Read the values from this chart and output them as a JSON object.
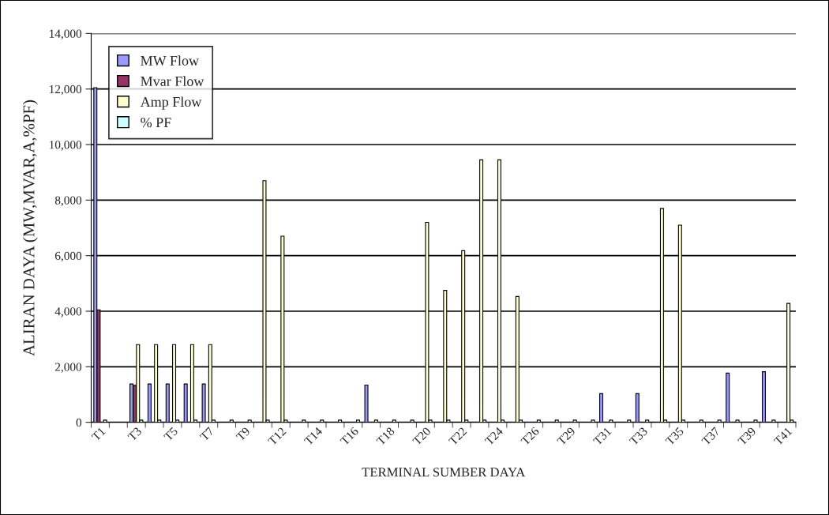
{
  "chart_data": {
    "type": "bar",
    "xlabel": "TERMINAL SUMBER DAYA",
    "ylabel": "ALIRAN DAYA (MW,MVAR,A,%PF)",
    "categories": [
      "T1",
      null,
      "T3",
      null,
      "T5",
      null,
      "T7",
      null,
      "T9",
      null,
      "T12",
      null,
      "T14",
      null,
      "T16",
      null,
      "T18",
      null,
      "T20",
      null,
      "T22",
      null,
      "T24",
      null,
      "T26",
      null,
      "T29",
      null,
      "T31",
      null,
      "T33",
      null,
      "T35",
      null,
      "T37",
      null,
      "T39",
      null,
      "T41"
    ],
    "series": [
      {
        "name": "MW Flow",
        "color": "#9999ff",
        "values": [
          12050,
          0,
          1380,
          1380,
          1380,
          1380,
          1380,
          0,
          0,
          0,
          0,
          0,
          0,
          0,
          0,
          1340,
          0,
          0,
          0,
          0,
          0,
          0,
          0,
          0,
          0,
          0,
          0,
          0,
          1030,
          0,
          1030,
          0,
          0,
          0,
          0,
          1770,
          0,
          1820,
          0
        ]
      },
      {
        "name": "Mvar Flow",
        "color": "#993366",
        "values": [
          4050,
          0,
          1330,
          0,
          0,
          0,
          0,
          0,
          0,
          0,
          0,
          0,
          0,
          0,
          0,
          0,
          0,
          0,
          0,
          0,
          0,
          0,
          0,
          0,
          0,
          0,
          0,
          0,
          0,
          0,
          0,
          0,
          0,
          0,
          0,
          0,
          0,
          0,
          0
        ]
      },
      {
        "name": "Amp Flow",
        "color": "#ffffcc",
        "values": [
          0,
          0,
          2800,
          2800,
          2800,
          2800,
          2800,
          0,
          0,
          8700,
          6700,
          0,
          0,
          0,
          0,
          0,
          0,
          0,
          7200,
          4750,
          6180,
          9450,
          9450,
          4530,
          0,
          0,
          0,
          0,
          0,
          0,
          0,
          7700,
          7100,
          0,
          0,
          0,
          0,
          0,
          4280
        ]
      },
      {
        "name": "% PF",
        "color": "#ccffff",
        "values": [
          80,
          null,
          80,
          80,
          80,
          80,
          80,
          80,
          80,
          80,
          80,
          80,
          80,
          80,
          80,
          80,
          80,
          80,
          80,
          80,
          80,
          80,
          80,
          80,
          80,
          80,
          80,
          80,
          80,
          80,
          80,
          80,
          80,
          80,
          80,
          80,
          80,
          80,
          80
        ]
      }
    ],
    "ylim": [
      0,
      14000
    ],
    "yticks": [
      {
        "value": 0,
        "label": "0"
      },
      {
        "value": 2000,
        "label": "2,000"
      },
      {
        "value": 4000,
        "label": "4,000"
      },
      {
        "value": 6000,
        "label": "6,000"
      },
      {
        "value": 8000,
        "label": "8,000"
      },
      {
        "value": 10000,
        "label": "10,000"
      },
      {
        "value": 12000,
        "label": "12,000"
      },
      {
        "value": 14000,
        "label": "14,000"
      }
    ],
    "grid": "y",
    "legend": "top left"
  }
}
